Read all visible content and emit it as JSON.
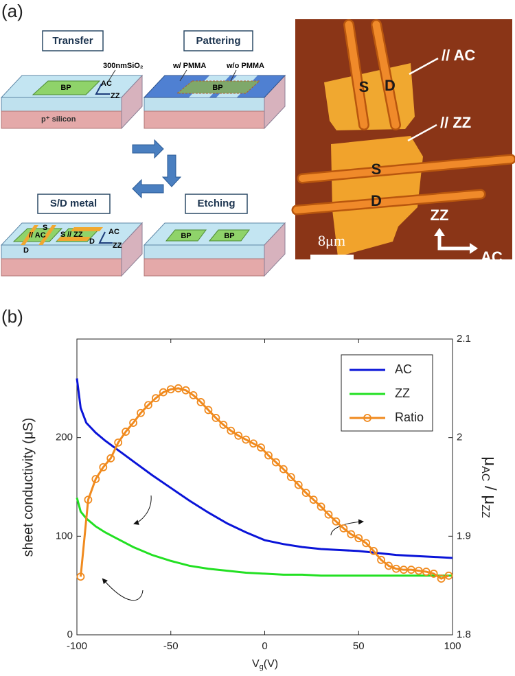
{
  "panel_a": {
    "label": "(a)",
    "transfer": {
      "title": "Transfer",
      "oxide": "300nmSiO₂",
      "flake": "BP",
      "ac": "AC",
      "zz": "ZZ",
      "substrate": "p⁺ silicon"
    },
    "patterning": {
      "title": "Pattering",
      "with": "w/ PMMA",
      "without": "w/o PMMA",
      "flake": "BP"
    },
    "metal": {
      "title": "S/D metal",
      "source_ac": "S",
      "ac": "// AC",
      "drain_ac": "D",
      "source_zz": "S",
      "zz": "// ZZ",
      "drain_zz": "D",
      "axis_ac": "AC",
      "axis_zz": "ZZ"
    },
    "etching": {
      "title": "Etching",
      "flakes": [
        "BP",
        "BP"
      ]
    },
    "micrograph": {
      "source_ac": "S",
      "drain_ac": "D",
      "ac": "// AC",
      "zz": "// ZZ",
      "source_zz": "S",
      "drain_zz": "D",
      "axis_zz": "ZZ",
      "axis_ac": "AC",
      "scale": "8μm"
    }
  },
  "chart_data": {
    "type": "line",
    "label": "(b)",
    "xlabel": [
      "V",
      "g",
      "(V)"
    ],
    "ylabel": "sheet conductivity (μS)",
    "y2label": [
      "μ",
      "AC",
      " / μ",
      "ZZ"
    ],
    "xlim": [
      -100,
      100
    ],
    "xticks": [
      -100,
      -50,
      0,
      50,
      100
    ],
    "ylim": [
      0,
      300
    ],
    "yticks": [
      0,
      100,
      200
    ],
    "y2lim": [
      1.8,
      2.1
    ],
    "y2ticks": [
      1.8,
      1.9,
      2,
      2.1
    ],
    "legend": "upper right",
    "series": [
      {
        "name": "AC",
        "color": "#0a14d8",
        "x": [
          -100,
          -98,
          -95,
          -90,
          -85,
          -80,
          -75,
          -70,
          -60,
          -50,
          -40,
          -30,
          -20,
          -10,
          0,
          10,
          20,
          30,
          40,
          50,
          60,
          70,
          80,
          90,
          100
        ],
        "values": [
          260,
          230,
          215,
          205,
          197,
          190,
          183,
          176,
          162,
          149,
          136,
          124,
          113,
          104,
          96,
          92,
          89,
          87,
          86,
          85,
          83,
          81,
          80,
          79,
          78
        ]
      },
      {
        "name": "ZZ",
        "color": "#22e022",
        "x": [
          -100,
          -98,
          -95,
          -90,
          -85,
          -80,
          -75,
          -70,
          -60,
          -50,
          -40,
          -30,
          -20,
          -10,
          0,
          10,
          20,
          30,
          40,
          50,
          60,
          70,
          80,
          90,
          100
        ],
        "values": [
          139,
          125,
          118,
          110,
          104,
          99,
          94,
          89,
          81,
          75,
          70,
          67,
          65,
          63,
          62,
          61,
          61,
          60,
          60,
          60,
          60,
          60,
          60,
          60,
          60
        ]
      },
      {
        "name": "Ratio",
        "color": "#f08a1e",
        "axis": "y2",
        "marker": "o",
        "x": [
          -98,
          -94,
          -90,
          -86,
          -82,
          -78,
          -74,
          -70,
          -66,
          -62,
          -58,
          -54,
          -50,
          -46,
          -42,
          -38,
          -34,
          -30,
          -26,
          -22,
          -18,
          -14,
          -10,
          -6,
          -2,
          2,
          6,
          10,
          14,
          18,
          22,
          26,
          30,
          34,
          38,
          42,
          46,
          50,
          54,
          58,
          62,
          66,
          70,
          74,
          78,
          82,
          86,
          90,
          94,
          98
        ],
        "values": [
          1.859,
          1.937,
          1.958,
          1.97,
          1.979,
          1.995,
          2.006,
          2.015,
          2.025,
          2.033,
          2.04,
          2.046,
          2.049,
          2.05,
          2.048,
          2.043,
          2.036,
          2.028,
          2.02,
          2.013,
          2.007,
          2.002,
          1.998,
          1.994,
          1.99,
          1.982,
          1.975,
          1.968,
          1.96,
          1.952,
          1.944,
          1.937,
          1.93,
          1.922,
          1.915,
          1.908,
          1.902,
          1.898,
          1.893,
          1.885,
          1.876,
          1.87,
          1.867,
          1.866,
          1.866,
          1.865,
          1.864,
          1.862,
          1.857,
          1.86
        ]
      }
    ]
  }
}
